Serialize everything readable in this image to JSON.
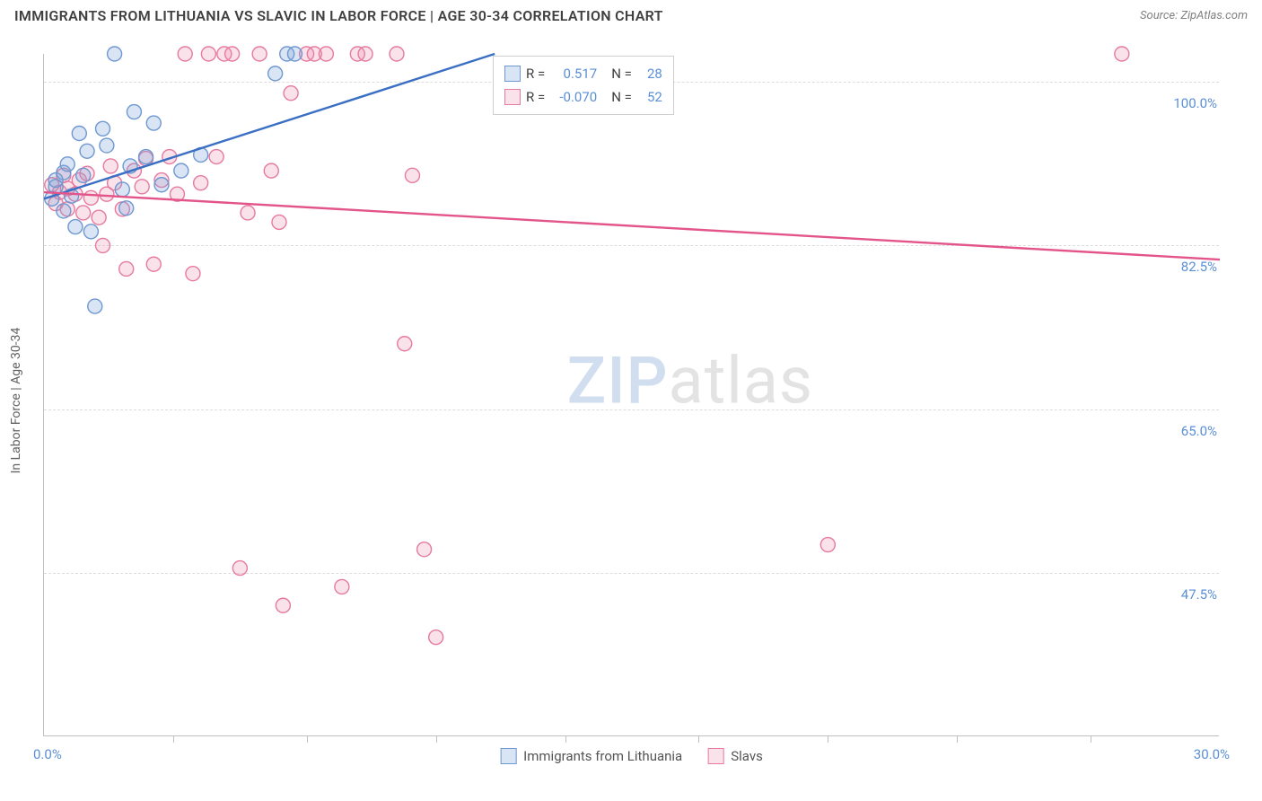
{
  "header": {
    "title": "IMMIGRANTS FROM LITHUANIA VS SLAVIC IN LABOR FORCE | AGE 30-34 CORRELATION CHART",
    "source_prefix": "Source: ",
    "source": "ZipAtlas.com"
  },
  "chart": {
    "type": "scatter",
    "ylabel": "In Labor Force | Age 30-34",
    "xlim": [
      0,
      30
    ],
    "ylim": [
      30,
      103
    ],
    "xaxis_min_label": "0.0%",
    "xaxis_max_label": "30.0%",
    "yticks": [
      {
        "v": 100,
        "label": "100.0%"
      },
      {
        "v": 82.5,
        "label": "82.5%"
      },
      {
        "v": 65,
        "label": "65.0%"
      },
      {
        "v": 47.5,
        "label": "47.5%"
      }
    ],
    "xticks": [
      3.3,
      6.7,
      10,
      13.3,
      16.7,
      20,
      23.3,
      26.7
    ],
    "background_color": "#ffffff",
    "grid_color": "#dcdcdc",
    "marker_radius": 8,
    "marker_stroke_width": 1.4,
    "line_width": 2.4,
    "series": {
      "lithuania": {
        "label": "Immigrants from Lithuania",
        "fill": "rgba(120,160,215,0.28)",
        "stroke": "#6f98d0",
        "R": "0.517",
        "N": "28",
        "points": [
          [
            0.2,
            87.5
          ],
          [
            0.3,
            88.8
          ],
          [
            0.3,
            89.5
          ],
          [
            0.5,
            86.2
          ],
          [
            0.5,
            90.3
          ],
          [
            0.6,
            91.2
          ],
          [
            0.7,
            87.8
          ],
          [
            0.8,
            84.5
          ],
          [
            0.9,
            94.5
          ],
          [
            1.0,
            90.0
          ],
          [
            1.1,
            92.6
          ],
          [
            1.2,
            84.0
          ],
          [
            1.3,
            76.0
          ],
          [
            1.5,
            95.0
          ],
          [
            1.6,
            93.2
          ],
          [
            1.8,
            103.0
          ],
          [
            2.0,
            88.5
          ],
          [
            2.1,
            86.5
          ],
          [
            2.2,
            91.0
          ],
          [
            2.3,
            96.8
          ],
          [
            2.6,
            92.0
          ],
          [
            2.8,
            95.6
          ],
          [
            3.0,
            89.0
          ],
          [
            3.5,
            90.5
          ],
          [
            4.0,
            92.2
          ],
          [
            5.9,
            100.9
          ],
          [
            6.2,
            103.0
          ],
          [
            6.4,
            103.0
          ]
        ],
        "trend": {
          "x1": 0,
          "y1": 87.5,
          "x2": 11.5,
          "y2": 103.0
        }
      },
      "slavs": {
        "label": "Slavs",
        "fill": "rgba(235,140,170,0.25)",
        "stroke": "#e67aa0",
        "R": "-0.070",
        "N": "52",
        "points": [
          [
            0.2,
            89.0
          ],
          [
            0.3,
            87.0
          ],
          [
            0.4,
            88.2
          ],
          [
            0.5,
            90.0
          ],
          [
            0.6,
            86.4
          ],
          [
            0.6,
            88.6
          ],
          [
            0.8,
            88.0
          ],
          [
            0.9,
            89.5
          ],
          [
            1.0,
            86.0
          ],
          [
            1.1,
            90.2
          ],
          [
            1.2,
            87.6
          ],
          [
            1.4,
            85.5
          ],
          [
            1.5,
            82.5
          ],
          [
            1.6,
            88.0
          ],
          [
            1.7,
            91.0
          ],
          [
            1.8,
            89.2
          ],
          [
            2.0,
            86.4
          ],
          [
            2.1,
            80.0
          ],
          [
            2.3,
            90.5
          ],
          [
            2.5,
            88.8
          ],
          [
            2.6,
            91.8
          ],
          [
            2.8,
            80.5
          ],
          [
            3.0,
            89.5
          ],
          [
            3.2,
            92.0
          ],
          [
            3.4,
            88.0
          ],
          [
            3.6,
            103.0
          ],
          [
            3.8,
            79.5
          ],
          [
            4.0,
            89.2
          ],
          [
            4.2,
            103.0
          ],
          [
            4.4,
            92.0
          ],
          [
            4.6,
            103.0
          ],
          [
            4.8,
            103.0
          ],
          [
            5.0,
            48.0
          ],
          [
            5.2,
            86.0
          ],
          [
            5.5,
            103.0
          ],
          [
            5.8,
            90.5
          ],
          [
            6.0,
            85.0
          ],
          [
            6.3,
            98.8
          ],
          [
            6.7,
            103.0
          ],
          [
            6.9,
            103.0
          ],
          [
            6.1,
            44.0
          ],
          [
            7.2,
            103.0
          ],
          [
            7.6,
            46.0
          ],
          [
            8.0,
            103.0
          ],
          [
            8.2,
            103.0
          ],
          [
            9.0,
            103.0
          ],
          [
            9.2,
            72.0
          ],
          [
            9.4,
            90.0
          ],
          [
            9.7,
            50.0
          ],
          [
            10.0,
            40.6
          ],
          [
            20.0,
            50.5
          ],
          [
            27.5,
            103.0
          ]
        ],
        "trend": {
          "x1": 0,
          "y1": 88.2,
          "x2": 30,
          "y2": 81.0
        }
      }
    },
    "legend_box": {
      "R_label": "R =",
      "N_label": "N ="
    },
    "watermark": {
      "bold": "ZIP",
      "rest": "atlas"
    }
  }
}
